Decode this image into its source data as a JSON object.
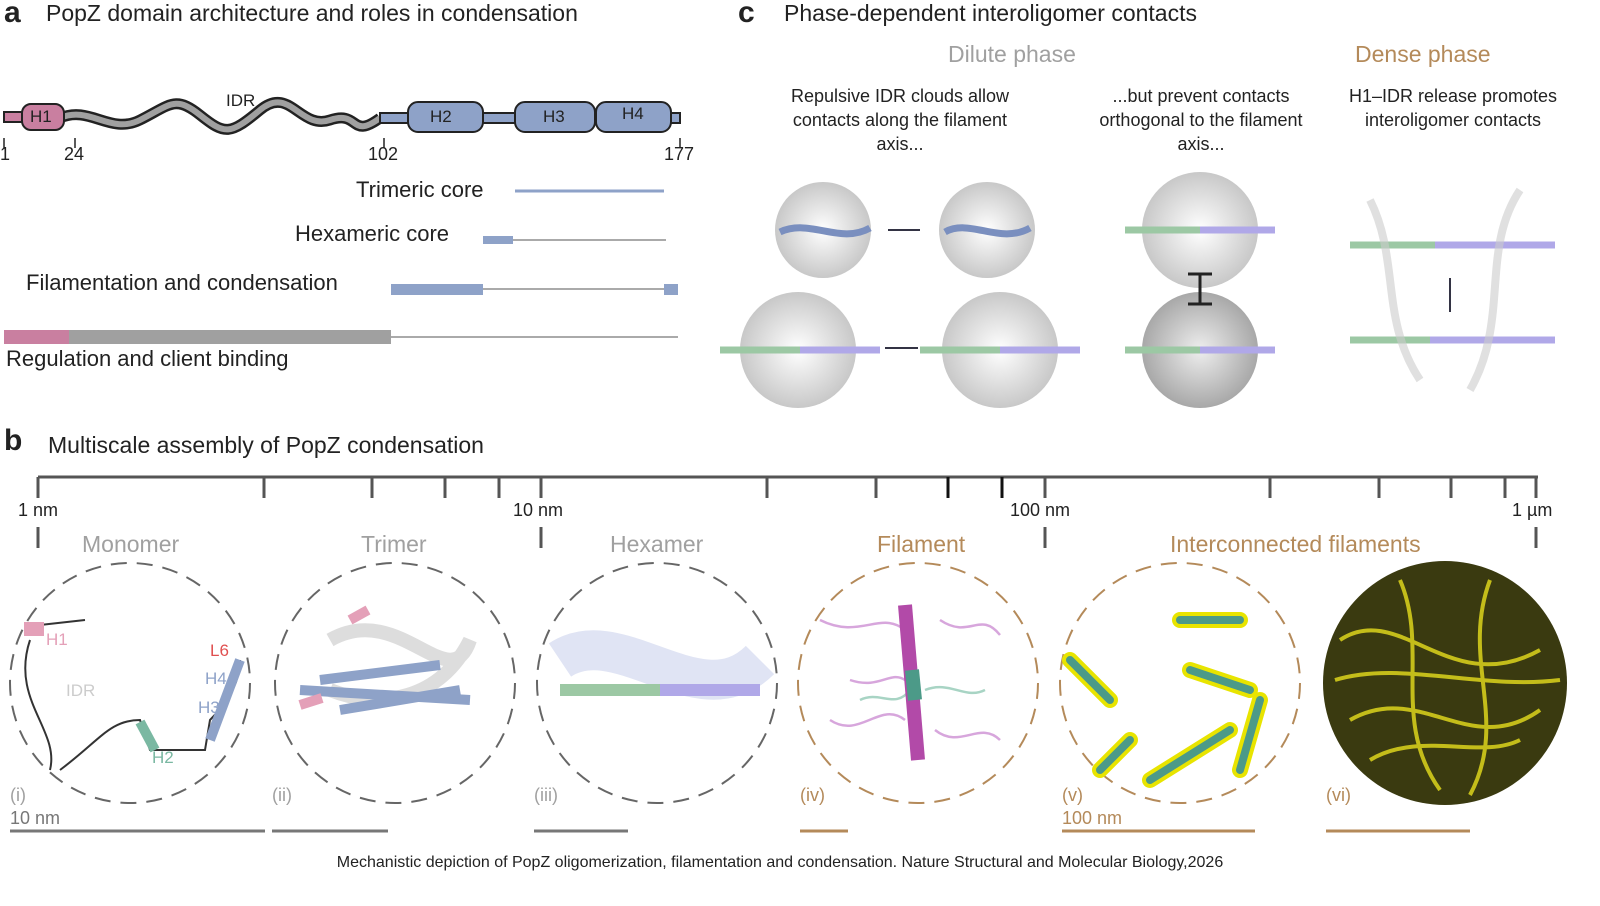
{
  "panel_a": {
    "letter": "a",
    "title": "PopZ domain architecture and roles in condensation",
    "domains": {
      "h1": "H1",
      "idr": "IDR",
      "h2": "H2",
      "h3": "H3",
      "h4": "H4"
    },
    "positions": [
      "1",
      "24",
      "102",
      "177"
    ],
    "roles": [
      "Trimeric core",
      "Hexameric core",
      "Filamentation and condensation",
      "Regulation and client binding"
    ]
  },
  "panel_b": {
    "letter": "b",
    "title": "Multiscale assembly of PopZ condensation",
    "scale_labels": [
      "1 nm",
      "10 nm",
      "100 nm",
      "1 µm"
    ],
    "stages": [
      "Monomer",
      "Trimer",
      "Hexamer",
      "Filament",
      "Interconnected filaments"
    ],
    "roman": [
      "(i)",
      "(ii)",
      "(iii)",
      "(iv)",
      "(v)",
      "(vi)"
    ],
    "monomer_labels": {
      "h1": "H1",
      "idr": "IDR",
      "l6": "L6",
      "h4": "H4",
      "h3": "H3",
      "h2": "H2"
    },
    "scalebars": [
      "10 nm",
      "100 nm"
    ]
  },
  "panel_c": {
    "letter": "c",
    "title": "Phase-dependent interoligomer contacts",
    "dilute": "Dilute phase",
    "dense": "Dense phase",
    "captions": [
      "Repulsive IDR clouds allow contacts along the filament axis...",
      "...but prevent contacts orthogonal to the filament axis...",
      "H1–IDR release promotes interoligomer contacts"
    ]
  },
  "caption": "Mechanistic depiction of PopZ oligomerization, filamentation and condensation. Nature Structural and Molecular Biology,2026",
  "colors": {
    "h1": "#c97fa0",
    "core": "#8ea2c8",
    "idr": "#a0a0a0",
    "tan": "#b48a5a",
    "green": "#9cc8a4",
    "purple": "#b0a8e8",
    "yellow": "#d4cc1c"
  }
}
